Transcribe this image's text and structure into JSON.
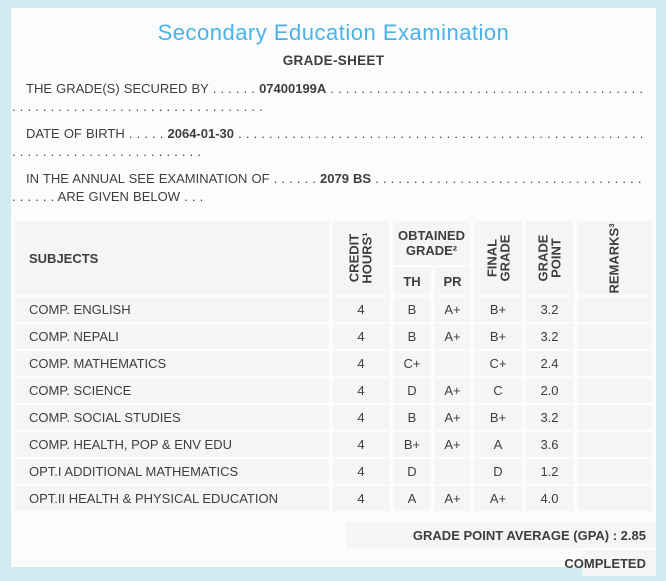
{
  "header": {
    "title": "Secondary Education Examination",
    "subtitle": "GRADE-SHEET"
  },
  "fields": [
    {
      "label": "THE GRADE(S) SECURED BY",
      "dots_before": ". . . . . .",
      "value": "07400199A",
      "dots_after": ". . . . . . . . . . . . . . . . . . . . . . . . . . . . . . . . . . . . . . . . . . . . . . . . . . . . . . . . . . . . . . . . . . . . . . . . . .",
      "suffix": ""
    },
    {
      "label": "DATE OF BIRTH",
      "dots_before": ". . . . .",
      "value": "2064-01-30",
      "dots_after": ". . . . . . . . . . . . . . . . . . . . . . . . . . . . . . . . . . . . . . . . . . . . . . . . . . . . . . . . . . . . . . . . . . . . . . . . . . . . . .",
      "suffix": ""
    },
    {
      "label": "IN THE ANNUAL SEE EXAMINATION OF",
      "dots_before": ". . . . . .",
      "value": "2079 BS",
      "dots_after": ". . . . . . . . . . . . . . . . . . . . . . . . . . . . . . . . . . . . . . . .",
      "suffix": ". ARE GIVEN BELOW . . ."
    }
  ],
  "table": {
    "col_subjects": "SUBJECTS",
    "col_credit": "CREDIT\nHOURS¹",
    "col_obtained": "OBTAINED\nGRADE²",
    "col_th": "TH",
    "col_pr": "PR",
    "col_final": "FINAL\nGRADE",
    "col_grade_point": "GRADE\nPOINT",
    "col_remarks": "REMARKS³",
    "rows": [
      {
        "subject": "COMP. ENGLISH",
        "credit": "4",
        "th": "B",
        "pr": "A+",
        "final": "B+",
        "gp": "3.2",
        "remarks": ""
      },
      {
        "subject": "COMP. NEPALI",
        "credit": "4",
        "th": "B",
        "pr": "A+",
        "final": "B+",
        "gp": "3.2",
        "remarks": ""
      },
      {
        "subject": "COMP. MATHEMATICS",
        "credit": "4",
        "th": "C+",
        "pr": "",
        "final": "C+",
        "gp": "2.4",
        "remarks": ""
      },
      {
        "subject": "COMP. SCIENCE",
        "credit": "4",
        "th": "D",
        "pr": "A+",
        "final": "C",
        "gp": "2.0",
        "remarks": ""
      },
      {
        "subject": "COMP. SOCIAL STUDIES",
        "credit": "4",
        "th": "B",
        "pr": "A+",
        "final": "B+",
        "gp": "3.2",
        "remarks": ""
      },
      {
        "subject": "COMP. HEALTH, POP & ENV EDU",
        "credit": "4",
        "th": "B+",
        "pr": "A+",
        "final": "A",
        "gp": "3.6",
        "remarks": ""
      },
      {
        "subject": "OPT.I ADDITIONAL MATHEMATICS",
        "credit": "4",
        "th": "D",
        "pr": "",
        "final": "D",
        "gp": "1.2",
        "remarks": ""
      },
      {
        "subject": "OPT.II HEALTH & PHYSICAL EDUCATION",
        "credit": "4",
        "th": "A",
        "pr": "A+",
        "final": "A+",
        "gp": "4.0",
        "remarks": ""
      }
    ]
  },
  "summary": {
    "gpa": "GRADE POINT AVERAGE (GPA) : 2.85",
    "status": "COMPLETED"
  },
  "colors": {
    "accent_blue": "#49b2e8",
    "frame_blue": "#d4eaf3",
    "text_dark": "#3d3e40",
    "cell_bg": "#f4f5f5"
  }
}
